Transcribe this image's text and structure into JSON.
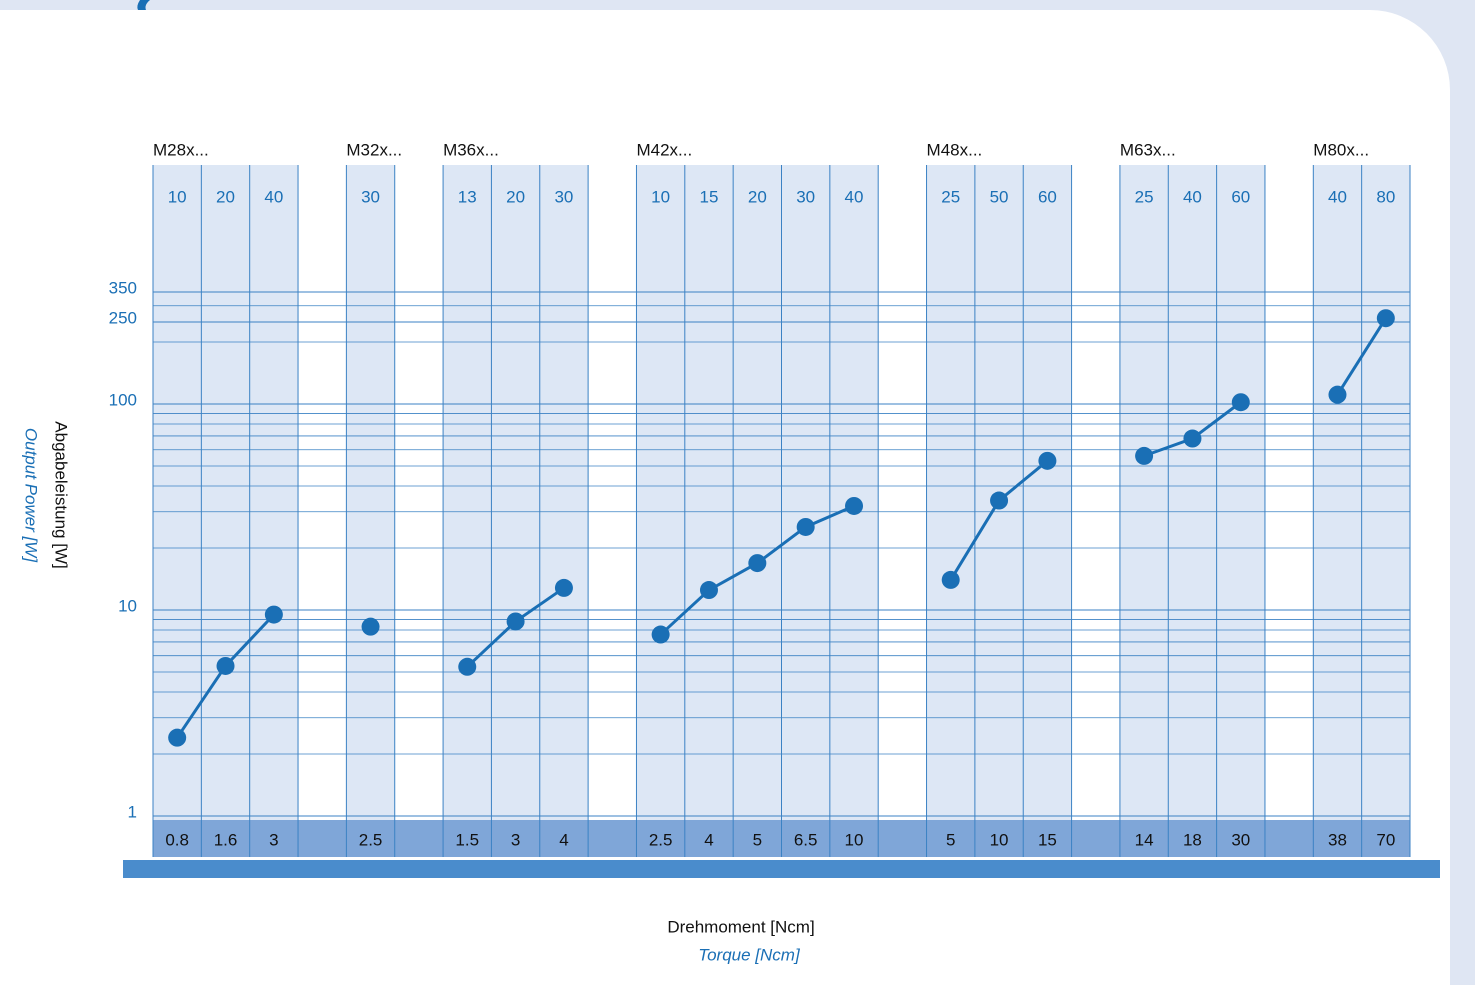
{
  "chart_data": {
    "type": "line",
    "y_label": "Abgabeleistung [W]",
    "y_label_en": "Output Power [W]",
    "x_label": "Drehmoment [Ncm]",
    "x_label_en": "Torque [Ncm]",
    "log_y": true,
    "ylim": [
      1,
      400
    ],
    "yticks": [
      1,
      10,
      100,
      250,
      350
    ],
    "minor_yticks": [
      2,
      3,
      4,
      5,
      6,
      7,
      8,
      9,
      20,
      30,
      40,
      50,
      60,
      70,
      80,
      90,
      200,
      300
    ],
    "color": "#1a6fb5",
    "groups": [
      {
        "name": "M28x...",
        "lengths": [
          10,
          20,
          40
        ],
        "categories": [
          0.8,
          1.6,
          3
        ],
        "values": [
          2.4,
          5.35,
          9.5
        ]
      },
      {
        "name": "M32x...",
        "lengths": [
          30
        ],
        "categories": [
          2.5
        ],
        "values": [
          8.3
        ]
      },
      {
        "name": "M36x...",
        "lengths": [
          13,
          20,
          30
        ],
        "categories": [
          1.5,
          3,
          4
        ],
        "values": [
          5.3,
          8.8,
          12.8
        ]
      },
      {
        "name": "M42x...",
        "lengths": [
          10,
          15,
          20,
          30,
          40
        ],
        "categories": [
          2.5,
          4,
          5,
          6.5,
          10
        ],
        "values": [
          7.6,
          12.5,
          16.9,
          25.3,
          32
        ]
      },
      {
        "name": "M48x...",
        "lengths": [
          25,
          50,
          60
        ],
        "categories": [
          5,
          10,
          15
        ],
        "values": [
          14,
          34,
          53
        ]
      },
      {
        "name": "M63x...",
        "lengths": [
          25,
          40,
          60
        ],
        "categories": [
          14,
          18,
          30
        ],
        "values": [
          56,
          68,
          102
        ]
      },
      {
        "name": "M80x...",
        "lengths": [
          40,
          80
        ],
        "categories": [
          38,
          70
        ],
        "values": [
          111,
          261
        ]
      }
    ]
  }
}
